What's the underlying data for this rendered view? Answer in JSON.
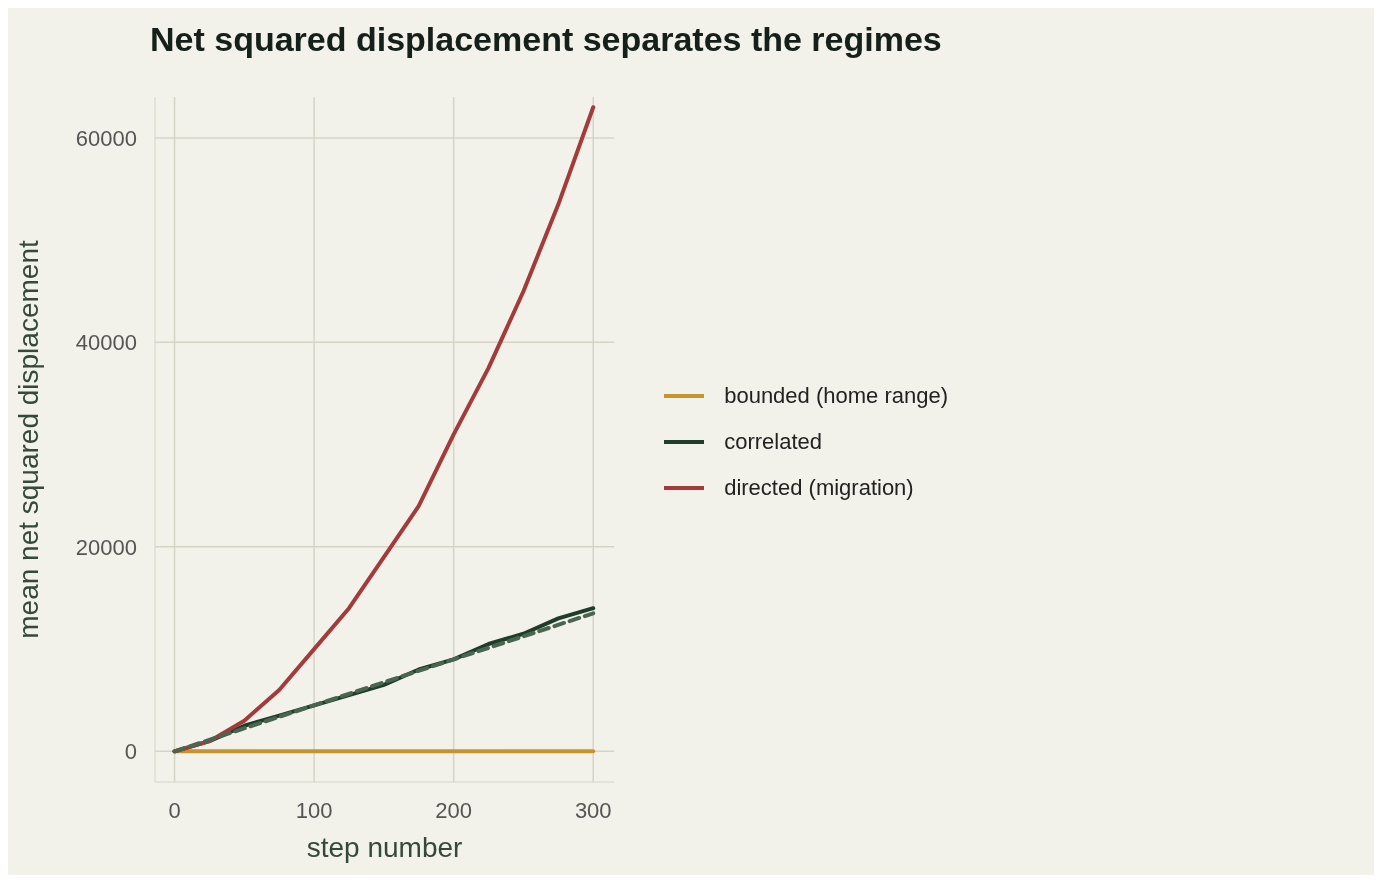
{
  "chart_data": {
    "type": "line",
    "title": "Net squared displacement separates the regimes",
    "xlabel": "step number",
    "ylabel": "mean net squared displacement",
    "xlim": [
      -14,
      315
    ],
    "ylim": [
      -3000,
      64000
    ],
    "xticks": [
      0,
      100,
      200,
      300
    ],
    "yticks": [
      0,
      20000,
      40000,
      60000
    ],
    "grid": true,
    "legend": "right",
    "marker": "none",
    "line_style": "solid",
    "series": [
      {
        "name": "bounded (home range)",
        "color": "#c4942f",
        "x": [
          0,
          25,
          50,
          75,
          100,
          125,
          150,
          175,
          200,
          225,
          250,
          275,
          300
        ],
        "values": [
          0,
          0,
          0,
          0,
          0,
          0,
          0,
          0,
          0,
          0,
          0,
          0,
          0
        ]
      },
      {
        "name": "correlated",
        "color": "#1f3d2b",
        "x": [
          0,
          25,
          50,
          75,
          100,
          125,
          150,
          175,
          200,
          225,
          250,
          275,
          300
        ],
        "values": [
          0,
          1000,
          2500,
          3500,
          4500,
          5500,
          6500,
          8000,
          9000,
          10500,
          11500,
          13000,
          14000
        ]
      },
      {
        "name": "directed (migration)",
        "color": "#a33b3b",
        "x": [
          0,
          25,
          50,
          75,
          100,
          125,
          150,
          175,
          200,
          225,
          250,
          275,
          300
        ],
        "values": [
          0,
          1000,
          3000,
          6000,
          10000,
          14000,
          19000,
          24000,
          31000,
          37500,
          45000,
          53500,
          63000
        ]
      },
      {
        "type": "line",
        "color": "#4a6650",
        "line_style": "dashed",
        "x": [
          0,
          300
        ],
        "values": [
          0,
          13500
        ]
      }
    ]
  }
}
